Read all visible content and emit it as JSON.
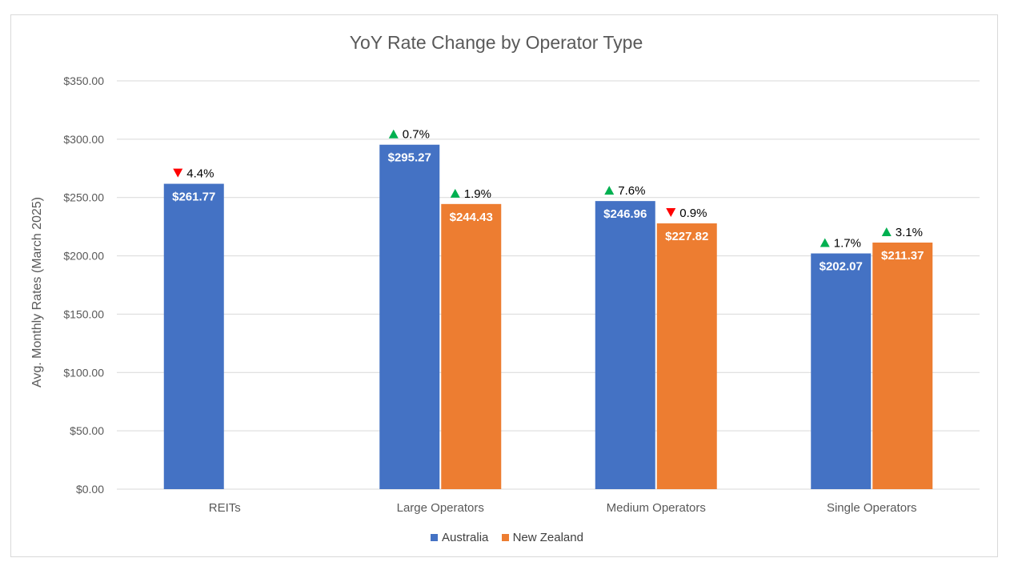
{
  "chart_data": {
    "type": "bar",
    "title": "YoY Rate Change by Operator Type",
    "ylabel": "Avg. Monthly Rates (March 2025)",
    "xlabel": "",
    "ylim": [
      0,
      350
    ],
    "yticks": [
      "$0.00",
      "$50.00",
      "$100.00",
      "$150.00",
      "$200.00",
      "$250.00",
      "$300.00",
      "$350.00"
    ],
    "categories": [
      "REITs",
      "Large Operators",
      "Medium Operators",
      "Single Operators"
    ],
    "grid": true,
    "legend_position": "bottom",
    "series": [
      {
        "name": "Australia",
        "color": "#4472c4",
        "values": [
          261.77,
          295.27,
          246.96,
          202.07
        ],
        "labels": [
          "$261.77",
          "$295.27",
          "$246.96",
          "$202.07"
        ],
        "changes": [
          "4.4%",
          "0.7%",
          "7.6%",
          "1.7%"
        ],
        "directions": [
          "down",
          "up",
          "up",
          "up"
        ]
      },
      {
        "name": "New Zealand",
        "color": "#ed7d31",
        "values": [
          null,
          244.43,
          227.82,
          211.37
        ],
        "labels": [
          null,
          "$244.43",
          "$227.82",
          "$211.37"
        ],
        "changes": [
          null,
          "1.9%",
          "0.9%",
          "3.1%"
        ],
        "directions": [
          null,
          "up",
          "down",
          "up"
        ]
      }
    ],
    "up_color": "#00b050",
    "down_color": "#ff0000"
  }
}
